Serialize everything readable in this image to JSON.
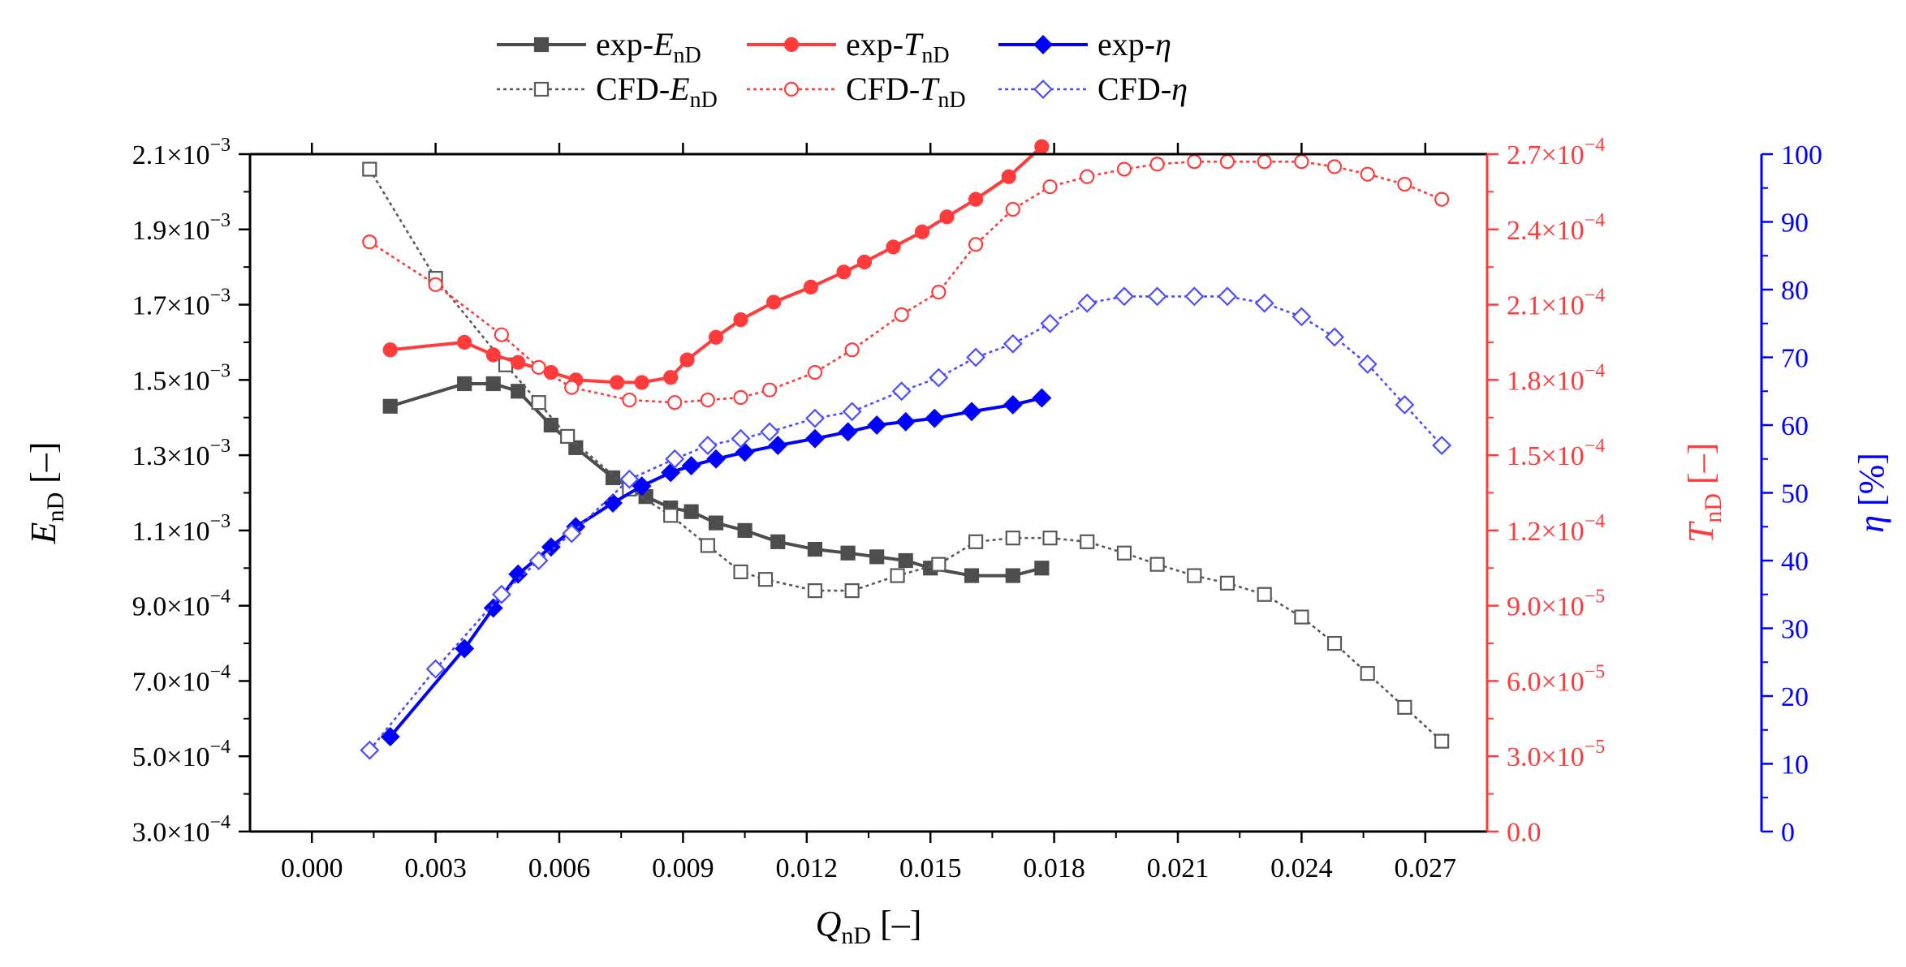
{
  "chart_data": {
    "type": "line",
    "title": "",
    "xlabel": {
      "main": "Q",
      "sub": "nD",
      "suffix": " [–]"
    },
    "ylabel_left": {
      "main": "E",
      "sub": "nD",
      "suffix": " [–]"
    },
    "ylabel_right1": {
      "main": "T",
      "sub": "nD",
      "suffix": " [–]"
    },
    "ylabel_right2": {
      "main": "η",
      "suffix": " [%]"
    },
    "xlim": [
      -0.0015,
      0.0285
    ],
    "ylim_left": [
      0.0003,
      0.0021
    ],
    "ylim_right1": [
      0.0,
      0.00027
    ],
    "ylim_right2": [
      0,
      100
    ],
    "x_ticks": [
      "0.000",
      "0.003",
      "0.006",
      "0.009",
      "0.012",
      "0.015",
      "0.018",
      "0.021",
      "0.024",
      "0.027"
    ],
    "x_tick_values": [
      0,
      0.003,
      0.006,
      0.009,
      0.012,
      0.015,
      0.018,
      0.021,
      0.024,
      0.027
    ],
    "y_left_ticks": [
      {
        "value": 0.0003,
        "mant": "3.0×10",
        "exp": "−4"
      },
      {
        "value": 0.0005,
        "mant": "5.0×10",
        "exp": "−4"
      },
      {
        "value": 0.0007,
        "mant": "7.0×10",
        "exp": "−4"
      },
      {
        "value": 0.0009,
        "mant": "9.0×10",
        "exp": "−4"
      },
      {
        "value": 0.0011,
        "mant": "1.1×10",
        "exp": "−3"
      },
      {
        "value": 0.0013,
        "mant": "1.3×10",
        "exp": "−3"
      },
      {
        "value": 0.0015,
        "mant": "1.5×10",
        "exp": "−3"
      },
      {
        "value": 0.0017,
        "mant": "1.7×10",
        "exp": "−3"
      },
      {
        "value": 0.0019,
        "mant": "1.9×10",
        "exp": "−3"
      },
      {
        "value": 0.0021,
        "mant": "2.1×10",
        "exp": "−3"
      }
    ],
    "y_right1_ticks": [
      {
        "value": 0.0,
        "mant": "0.0",
        "exp": ""
      },
      {
        "value": 3e-05,
        "mant": "3.0×10",
        "exp": "−5"
      },
      {
        "value": 6e-05,
        "mant": "6.0×10",
        "exp": "−5"
      },
      {
        "value": 9e-05,
        "mant": "9.0×10",
        "exp": "−5"
      },
      {
        "value": 0.00012,
        "mant": "1.2×10",
        "exp": "−4"
      },
      {
        "value": 0.00015,
        "mant": "1.5×10",
        "exp": "−4"
      },
      {
        "value": 0.00018,
        "mant": "1.8×10",
        "exp": "−4"
      },
      {
        "value": 0.00021,
        "mant": "2.1×10",
        "exp": "−4"
      },
      {
        "value": 0.00024,
        "mant": "2.4×10",
        "exp": "−4"
      },
      {
        "value": 0.00027,
        "mant": "2.7×10",
        "exp": "−4"
      }
    ],
    "y_right2_ticks": [
      "0",
      "10",
      "20",
      "30",
      "40",
      "50",
      "60",
      "70",
      "80",
      "90",
      "100"
    ],
    "legend": {
      "placement": "top-center",
      "columns": 3
    },
    "series": [
      {
        "id": "exp-E",
        "label": {
          "prefix": "exp-",
          "main": "E",
          "sub": "nD"
        },
        "axis": "left",
        "color": "#4d4d4d",
        "dash": "solid",
        "marker": "square",
        "filled": true,
        "points": [
          [
            0.0019,
            0.00143
          ],
          [
            0.0037,
            0.00149
          ],
          [
            0.0044,
            0.00149
          ],
          [
            0.005,
            0.00147
          ],
          [
            0.0058,
            0.00138
          ],
          [
            0.0064,
            0.00132
          ],
          [
            0.0073,
            0.00124
          ],
          [
            0.0081,
            0.00119
          ],
          [
            0.0087,
            0.00116
          ],
          [
            0.0092,
            0.00115
          ],
          [
            0.0098,
            0.00112
          ],
          [
            0.0105,
            0.0011
          ],
          [
            0.0113,
            0.00107
          ],
          [
            0.0122,
            0.00105
          ],
          [
            0.013,
            0.00104
          ],
          [
            0.0137,
            0.00103
          ],
          [
            0.0144,
            0.00102
          ],
          [
            0.015,
            0.001
          ],
          [
            0.016,
            0.00098
          ],
          [
            0.017,
            0.00098
          ],
          [
            0.0177,
            0.001
          ]
        ]
      },
      {
        "id": "cfd-E",
        "label": {
          "prefix": "CFD-",
          "main": "E",
          "sub": "nD"
        },
        "axis": "left",
        "color": "#595959",
        "dash": "dotted",
        "marker": "square",
        "filled": false,
        "points": [
          [
            0.0014,
            0.00206
          ],
          [
            0.003,
            0.00177
          ],
          [
            0.0047,
            0.00154
          ],
          [
            0.0055,
            0.00144
          ],
          [
            0.0062,
            0.00135
          ],
          [
            0.0077,
            0.00121
          ],
          [
            0.0087,
            0.00114
          ],
          [
            0.0096,
            0.00106
          ],
          [
            0.0104,
            0.00099
          ],
          [
            0.011,
            0.00097
          ],
          [
            0.0122,
            0.00094
          ],
          [
            0.0131,
            0.00094
          ],
          [
            0.0142,
            0.00098
          ],
          [
            0.0152,
            0.00101
          ],
          [
            0.0161,
            0.00107
          ],
          [
            0.017,
            0.00108
          ],
          [
            0.0179,
            0.00108
          ],
          [
            0.0188,
            0.00107
          ],
          [
            0.0197,
            0.00104
          ],
          [
            0.0205,
            0.00101
          ],
          [
            0.0214,
            0.00098
          ],
          [
            0.0222,
            0.00096
          ],
          [
            0.0231,
            0.00093
          ],
          [
            0.024,
            0.00087
          ],
          [
            0.0248,
            0.0008
          ],
          [
            0.0256,
            0.00072
          ],
          [
            0.0265,
            0.00063
          ],
          [
            0.0274,
            0.00054
          ]
        ]
      },
      {
        "id": "exp-T",
        "label": {
          "prefix": "exp-",
          "main": "T",
          "sub": "nD"
        },
        "axis": "right1",
        "color": "#ff3b3b",
        "dash": "solid",
        "marker": "circle",
        "filled": true,
        "points": [
          [
            0.0019,
            0.000192
          ],
          [
            0.0037,
            0.000195
          ],
          [
            0.0044,
            0.00019
          ],
          [
            0.005,
            0.000187
          ],
          [
            0.0058,
            0.000183
          ],
          [
            0.0064,
            0.00018
          ],
          [
            0.0074,
            0.000179
          ],
          [
            0.008,
            0.000179
          ],
          [
            0.0087,
            0.000181
          ],
          [
            0.0091,
            0.000188
          ],
          [
            0.0098,
            0.000197
          ],
          [
            0.0104,
            0.000204
          ],
          [
            0.0112,
            0.000211
          ],
          [
            0.0121,
            0.000217
          ],
          [
            0.0129,
            0.000223
          ],
          [
            0.0134,
            0.000227
          ],
          [
            0.0141,
            0.000233
          ],
          [
            0.0148,
            0.000239
          ],
          [
            0.0154,
            0.000245
          ],
          [
            0.0161,
            0.000252
          ],
          [
            0.0169,
            0.000261
          ],
          [
            0.0177,
            0.000273
          ]
        ]
      },
      {
        "id": "cfd-T",
        "label": {
          "prefix": "CFD-",
          "main": "T",
          "sub": "nD"
        },
        "axis": "right1",
        "color": "#ff3b3b",
        "dash": "dotted",
        "marker": "circle",
        "filled": false,
        "points": [
          [
            0.0014,
            0.000235
          ],
          [
            0.003,
            0.000218
          ],
          [
            0.0046,
            0.000198
          ],
          [
            0.0055,
            0.000185
          ],
          [
            0.0063,
            0.000177
          ],
          [
            0.0077,
            0.000172
          ],
          [
            0.0088,
            0.000171
          ],
          [
            0.0096,
            0.000172
          ],
          [
            0.0104,
            0.000173
          ],
          [
            0.0111,
            0.000176
          ],
          [
            0.0122,
            0.000183
          ],
          [
            0.0131,
            0.000192
          ],
          [
            0.0143,
            0.000206
          ],
          [
            0.0152,
            0.000215
          ],
          [
            0.0161,
            0.000234
          ],
          [
            0.017,
            0.000248
          ],
          [
            0.0179,
            0.000257
          ],
          [
            0.0188,
            0.000261
          ],
          [
            0.0197,
            0.000264
          ],
          [
            0.0205,
            0.000266
          ],
          [
            0.0214,
            0.000267
          ],
          [
            0.0222,
            0.000267
          ],
          [
            0.0231,
            0.000267
          ],
          [
            0.024,
            0.000267
          ],
          [
            0.0248,
            0.000265
          ],
          [
            0.0256,
            0.000262
          ],
          [
            0.0265,
            0.000258
          ],
          [
            0.0274,
            0.000252
          ]
        ]
      },
      {
        "id": "exp-eta",
        "label": {
          "prefix": "exp-",
          "main": "η",
          "sub": ""
        },
        "axis": "right2",
        "color": "#0000ff",
        "dash": "solid",
        "marker": "diamond",
        "filled": true,
        "points": [
          [
            0.0019,
            14
          ],
          [
            0.0037,
            27
          ],
          [
            0.0044,
            33
          ],
          [
            0.005,
            38
          ],
          [
            0.0058,
            42
          ],
          [
            0.0064,
            45
          ],
          [
            0.0073,
            48.5
          ],
          [
            0.008,
            51
          ],
          [
            0.0087,
            53
          ],
          [
            0.0092,
            54
          ],
          [
            0.0098,
            55
          ],
          [
            0.0105,
            56
          ],
          [
            0.0113,
            57
          ],
          [
            0.0122,
            58
          ],
          [
            0.013,
            59
          ],
          [
            0.0137,
            60
          ],
          [
            0.0144,
            60.5
          ],
          [
            0.0151,
            61
          ],
          [
            0.016,
            62
          ],
          [
            0.017,
            63
          ],
          [
            0.0177,
            64
          ]
        ]
      },
      {
        "id": "cfd-eta",
        "label": {
          "prefix": "CFD-",
          "main": "η",
          "sub": ""
        },
        "axis": "right2",
        "color": "#4d4dff",
        "dash": "dotted",
        "marker": "diamond",
        "filled": false,
        "points": [
          [
            0.0014,
            12
          ],
          [
            0.003,
            24
          ],
          [
            0.0046,
            35
          ],
          [
            0.0055,
            40
          ],
          [
            0.0063,
            44
          ],
          [
            0.0077,
            52
          ],
          [
            0.0088,
            55
          ],
          [
            0.0096,
            57
          ],
          [
            0.0104,
            58
          ],
          [
            0.0111,
            59
          ],
          [
            0.0122,
            61
          ],
          [
            0.0131,
            62
          ],
          [
            0.0143,
            65
          ],
          [
            0.0152,
            67
          ],
          [
            0.0161,
            70
          ],
          [
            0.017,
            72
          ],
          [
            0.0179,
            75
          ],
          [
            0.0188,
            78
          ],
          [
            0.0197,
            79
          ],
          [
            0.0205,
            79
          ],
          [
            0.0214,
            79
          ],
          [
            0.0222,
            79
          ],
          [
            0.0231,
            78
          ],
          [
            0.024,
            76
          ],
          [
            0.0248,
            73
          ],
          [
            0.0256,
            69
          ],
          [
            0.0265,
            63
          ],
          [
            0.0274,
            57
          ]
        ]
      }
    ]
  }
}
